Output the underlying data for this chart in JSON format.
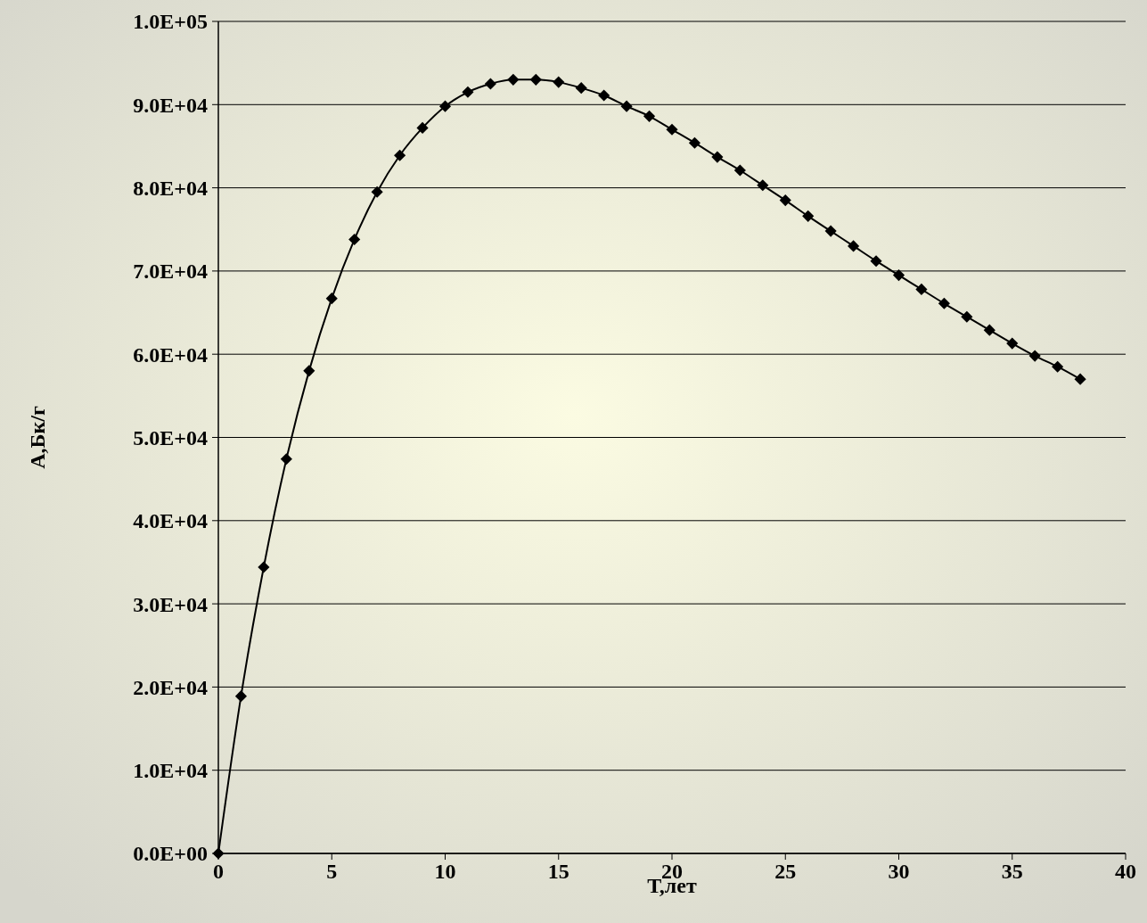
{
  "chart_data": {
    "type": "line",
    "xlabel": "Т,лет",
    "ylabel": "А,Бк/г",
    "x": [
      0,
      1,
      2,
      3,
      4,
      5,
      6,
      7,
      8,
      9,
      10,
      11,
      12,
      13,
      14,
      15,
      16,
      17,
      18,
      19,
      20,
      21,
      22,
      23,
      24,
      25,
      26,
      27,
      28,
      29,
      30,
      31,
      32,
      33,
      34,
      35,
      36,
      37,
      38
    ],
    "series": [
      {
        "color": "#000000",
        "values": [
          0,
          18900,
          34400,
          47400,
          58000,
          66700,
          73800,
          79500,
          83900,
          87200,
          89800,
          91500,
          92500,
          93000,
          93000,
          92700,
          92000,
          91100,
          89800,
          88600,
          87000,
          85400,
          83700,
          82100,
          80300,
          78500,
          76600,
          74800,
          73000,
          71200,
          69500,
          67800,
          66100,
          64500,
          62900,
          61300,
          59800,
          58500,
          57000
        ]
      }
    ],
    "xlim": [
      0,
      40
    ],
    "xticks": [
      0,
      5,
      10,
      15,
      20,
      25,
      30,
      35,
      40
    ],
    "ylim": [
      0,
      100000
    ],
    "yticks": [
      {
        "value": 0,
        "label": "0.0E+00"
      },
      {
        "value": 10000,
        "label": "1.0E+04"
      },
      {
        "value": 20000,
        "label": "2.0E+04"
      },
      {
        "value": 30000,
        "label": "3.0E+04"
      },
      {
        "value": 40000,
        "label": "4.0E+04"
      },
      {
        "value": 50000,
        "label": "5.0E+04"
      },
      {
        "value": 60000,
        "label": "6.0E+04"
      },
      {
        "value": 70000,
        "label": "7.0E+04"
      },
      {
        "value": 80000,
        "label": "8.0E+04"
      },
      {
        "value": 90000,
        "label": "9.0E+04"
      },
      {
        "value": 100000,
        "label": "1.0E+05"
      }
    ],
    "grid": "y",
    "marker": "diamond",
    "line_style": "solid"
  }
}
